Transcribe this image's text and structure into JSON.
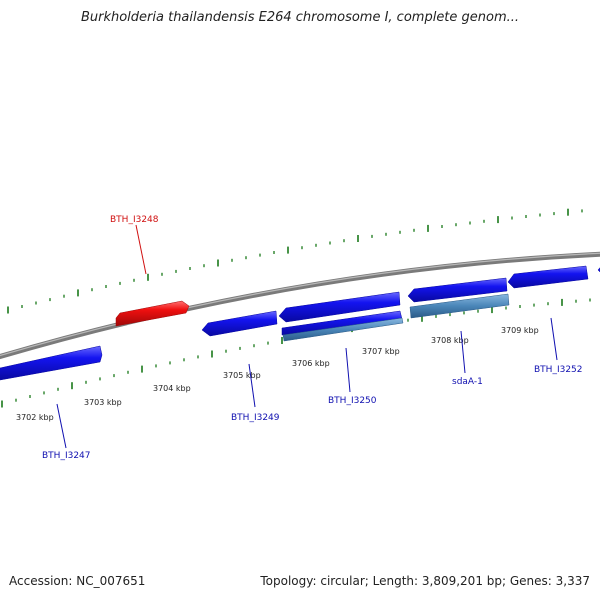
{
  "title": "Burkholderia thailandensis E264 chromosome I, complete genom...",
  "footer": {
    "accession": "Accession: NC_007651",
    "summary": "Topology: circular; Length: 3,809,201 bp; Genes: 3,337"
  },
  "colors": {
    "backbone": "#808080",
    "tick": "#1a7a1a",
    "gene_forward": "#1010e0",
    "gene_reverse_highlight": "#e81818",
    "gene_label": "#1010b0",
    "highlight_label": "#d01010",
    "rna_feature": "#4a86b8"
  },
  "position_labels": [
    "3702 kbp",
    "3703 kbp",
    "3704 kbp",
    "3705 kbp",
    "3706 kbp",
    "3707 kbp",
    "3708 kbp",
    "3709 kbp"
  ],
  "gene_labels": [
    {
      "id": "g1",
      "text": "BTH_I3248",
      "highlight": true
    },
    {
      "id": "g2",
      "text": "BTH_I3247",
      "highlight": false
    },
    {
      "id": "g3",
      "text": "BTH_I3249",
      "highlight": false
    },
    {
      "id": "g4",
      "text": "BTH_I3250",
      "highlight": false
    },
    {
      "id": "g5",
      "text": "sdaA-1",
      "highlight": false
    },
    {
      "id": "g6",
      "text": "BTH_I3252",
      "highlight": false
    }
  ]
}
